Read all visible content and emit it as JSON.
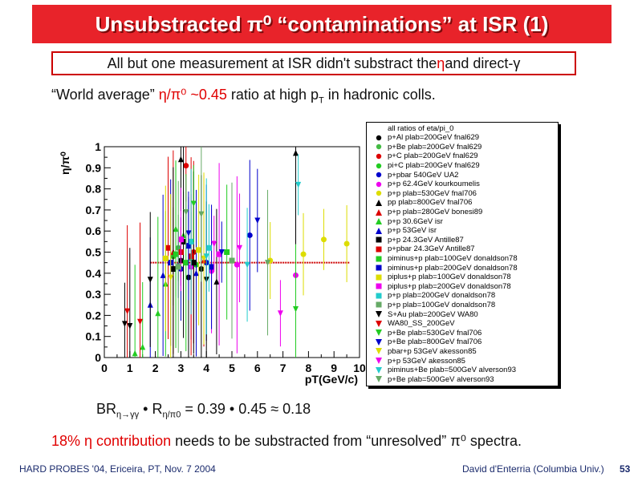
{
  "slide": {
    "title": "Unsubstracted π⁰ “contaminations” at ISR (1)",
    "subtitle_part1": "All but one measurement at ISR didn't substract the ",
    "subtitle_eta": "η",
    "subtitle_part2": " and direct-γ",
    "world_avg_prefix": "“World average” ",
    "world_avg_red": "η/π⁰ ~0.45",
    "world_avg_suffix": " ratio at high p",
    "world_avg_sub": "T",
    "world_avg_end": " in hadronic colls.",
    "formula_br": "BR",
    "formula_br_sub": "η→γγ",
    "formula_dot": " • R",
    "formula_r_sub": "η/π0",
    "formula_rest": " = 0.39 • 0.45 ≈ 0.18",
    "note_red": "18% η contribution",
    "note_rest": " needs to be substracted from “unresolved” π⁰ spectra.",
    "footer_left": "HARD PROBES '04, Ericeira, PT, Nov. 7 2004",
    "footer_right": "David d'Enterria (Columbia Univ.)",
    "page_number": "53"
  },
  "colors": {
    "title_bg": "#e8232a",
    "accent_red": "#e00000",
    "avg_line": "#cc0000",
    "footer": "#1a2a6c"
  },
  "chart_data": {
    "type": "scatter",
    "xlabel": "p_T(GeV/c)",
    "ylabel": "η/π⁰",
    "xlim": [
      0,
      10
    ],
    "ylim": [
      0,
      1
    ],
    "x_ticks": [
      "0",
      "1",
      "2",
      "3",
      "4",
      "5",
      "6",
      "7",
      "8",
      "9",
      "10"
    ],
    "y_ticks": [
      "0",
      "0.1",
      "0.2",
      "0.3",
      "0.4",
      "0.5",
      "0.6",
      "0.7",
      "0.8",
      "0.9",
      "1"
    ],
    "average": {
      "value": 0.45,
      "x_range": [
        1.8,
        9.6
      ]
    },
    "legend_title": "all ratios of eta/pi_0",
    "series": [
      {
        "name": "p+Al plab=200GeV fnal629",
        "color": "#000000",
        "marker": "circle",
        "points": [
          [
            3.0,
            0.46
          ],
          [
            3.3,
            0.38
          ],
          [
            3.8,
            0.42
          ]
        ]
      },
      {
        "name": "p+Be plab=200GeV fnal629",
        "color": "#44bb44",
        "marker": "circle",
        "points": [
          [
            2.9,
            0.52
          ],
          [
            3.4,
            0.47
          ]
        ]
      },
      {
        "name": "p+C plab=200GeV fnal629",
        "color": "#dd0000",
        "marker": "circle",
        "points": [
          [
            3.2,
            0.91
          ],
          [
            3.5,
            0.5
          ]
        ]
      },
      {
        "name": "pi+C plab=200GeV fnal629",
        "color": "#22cc22",
        "marker": "circle",
        "points": [
          [
            2.7,
            0.48
          ],
          [
            3.6,
            0.44
          ]
        ]
      },
      {
        "name": "p+pbar 540GeV UA2",
        "color": "#0000cc",
        "marker": "circle",
        "points": [
          [
            3.0,
            0.42
          ],
          [
            4.0,
            0.45
          ],
          [
            5.7,
            0.58
          ]
        ]
      },
      {
        "name": "p+p 62.4GeV kourkoumelis",
        "color": "#ee00ee",
        "marker": "circle",
        "points": [
          [
            3.4,
            0.43
          ],
          [
            4.2,
            0.41
          ],
          [
            5.2,
            0.44
          ],
          [
            7.5,
            0.39
          ]
        ]
      },
      {
        "name": "p+p plab=530GeV fnal706",
        "color": "#dddd00",
        "marker": "circle",
        "points": [
          [
            6.5,
            0.46
          ],
          [
            7.8,
            0.49
          ],
          [
            8.6,
            0.56
          ],
          [
            9.5,
            0.54
          ]
        ]
      },
      {
        "name": "pp plab=800GeV fnal706",
        "color": "#000000",
        "marker": "triangle-up",
        "points": [
          [
            3.0,
            0.94
          ],
          [
            4.4,
            0.36
          ],
          [
            7.5,
            0.97
          ]
        ]
      },
      {
        "name": "p+p plab=280GeV bonesi89",
        "color": "#dd0000",
        "marker": "triangle-up",
        "points": [
          [
            2.7,
            0.5
          ],
          [
            3.9,
            0.46
          ]
        ]
      },
      {
        "name": "p+p 30.6GeV isr",
        "color": "#22cc22",
        "marker": "triangle-up",
        "points": [
          [
            1.2,
            0.02
          ],
          [
            1.5,
            0.05
          ],
          [
            2.1,
            0.21
          ],
          [
            2.4,
            0.35
          ],
          [
            2.8,
            0.61
          ],
          [
            3.1,
            0.58
          ]
        ]
      },
      {
        "name": "p+p 53GeV isr",
        "color": "#0000cc",
        "marker": "triangle-up",
        "points": [
          [
            1.8,
            0.25
          ],
          [
            2.3,
            0.39
          ],
          [
            2.9,
            0.44
          ],
          [
            3.6,
            0.4
          ]
        ]
      },
      {
        "name": "p+p 24.3GeV Antille87",
        "color": "#000000",
        "marker": "square",
        "points": [
          [
            2.7,
            0.42
          ],
          [
            3.1,
            0.55
          ],
          [
            3.5,
            0.45
          ]
        ]
      },
      {
        "name": "p+pbar 24.3GeV Antille87",
        "color": "#dd0000",
        "marker": "square",
        "points": [
          [
            2.5,
            0.52
          ],
          [
            3.0,
            0.5
          ],
          [
            3.4,
            0.48
          ]
        ]
      },
      {
        "name": "piminus+p plab=100GeV donaldson78",
        "color": "#22cc22",
        "marker": "square",
        "points": [
          [
            2.8,
            0.49
          ],
          [
            3.2,
            0.45
          ],
          [
            4.8,
            0.5
          ]
        ]
      },
      {
        "name": "piminus+p plab=200GeV donaldson78",
        "color": "#0000cc",
        "marker": "square",
        "points": [
          [
            2.6,
            0.45
          ],
          [
            3.3,
            0.53
          ],
          [
            4.2,
            0.43
          ]
        ]
      },
      {
        "name": "piplus+p plab=100GeV donaldson78",
        "color": "#dddd00",
        "marker": "square",
        "points": [
          [
            2.4,
            0.47
          ],
          [
            3.7,
            0.51
          ]
        ]
      },
      {
        "name": "piplus+p plab=200GeV donaldson78",
        "color": "#ee00ee",
        "marker": "square",
        "points": [
          [
            3.0,
            0.56
          ],
          [
            4.5,
            0.49
          ]
        ]
      },
      {
        "name": "p+p plab=200GeV donaldson78",
        "color": "#22cccc",
        "marker": "square",
        "points": [
          [
            3.4,
            0.55
          ],
          [
            4.1,
            0.52
          ]
        ]
      },
      {
        "name": "p+p plab=100GeV donaldson78",
        "color": "#66aa66",
        "marker": "square",
        "points": [
          [
            2.9,
            0.43
          ],
          [
            5.0,
            0.46
          ]
        ]
      },
      {
        "name": "S+Au plab=200GeV WA80",
        "color": "#000000",
        "marker": "triangle-down",
        "points": [
          [
            0.8,
            0.16
          ],
          [
            1.0,
            0.15
          ],
          [
            1.8,
            0.37
          ],
          [
            4.0,
            0.37
          ]
        ]
      },
      {
        "name": "WA80_SS_200GeV",
        "color": "#dd0000",
        "marker": "triangle-down",
        "points": [
          [
            0.9,
            0.22
          ],
          [
            1.4,
            0.17
          ]
        ]
      },
      {
        "name": "p+Be plab=530GeV fnal706",
        "color": "#22cc22",
        "marker": "triangle-down",
        "points": [
          [
            3.5,
            0.73
          ],
          [
            7.5,
            0.23
          ]
        ]
      },
      {
        "name": "p+Be plab=800GeV fnal706",
        "color": "#0000cc",
        "marker": "triangle-down",
        "points": [
          [
            3.3,
            0.59
          ],
          [
            4.6,
            0.5
          ],
          [
            6.0,
            0.65
          ]
        ]
      },
      {
        "name": "pbar+p 53GeV akesson85",
        "color": "#dddd00",
        "marker": "triangle-down",
        "points": [
          [
            2.6,
            0.38
          ],
          [
            3.9,
            0.47
          ]
        ]
      },
      {
        "name": "p+p 53GeV akesson85",
        "color": "#ee00ee",
        "marker": "triangle-down",
        "points": [
          [
            4.3,
            0.54
          ],
          [
            5.3,
            0.52
          ],
          [
            6.9,
            0.21
          ]
        ]
      },
      {
        "name": "piminus+Be plab=500GeV alverson93",
        "color": "#22cccc",
        "marker": "triangle-down",
        "points": [
          [
            4.0,
            0.48
          ],
          [
            5.6,
            0.44
          ],
          [
            7.6,
            0.82
          ]
        ]
      },
      {
        "name": "p+Be plab=500GeV alverson93",
        "color": "#66aa66",
        "marker": "triangle-down",
        "points": [
          [
            3.2,
            0.69
          ],
          [
            3.8,
            0.68
          ],
          [
            6.4,
            0.45
          ]
        ]
      }
    ]
  }
}
